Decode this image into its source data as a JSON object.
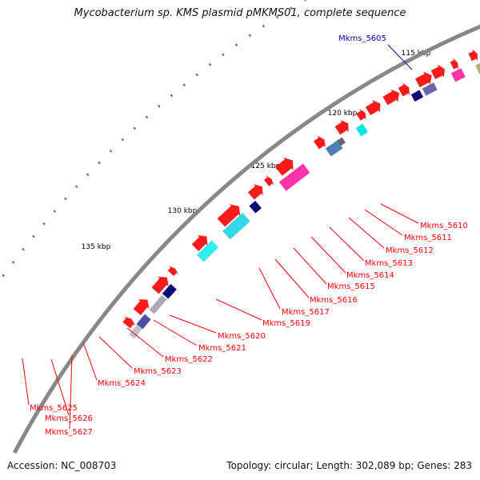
{
  "title": "Mycobacterium sp. KMS plasmid pMKMS01, complete sequence",
  "footer": {
    "accession": "Accession: NC_008703",
    "summary": "Topology: circular; Length: 302,089 bp; Genes: 283"
  },
  "colors": {
    "backbone": "#888888",
    "cds_forward": "#ff0000",
    "tick": "#2a8a2a",
    "tick_label": "#000000",
    "label_red": "#ff0000",
    "label_blue": "#0000cc"
  },
  "map": {
    "scale_labels": [
      "115 kbp",
      "120 kbp",
      "125 kbp",
      "130 kbp",
      "135 kbp"
    ],
    "gene_labels": [
      {
        "text": "Mkms_5605",
        "color": "blue"
      },
      {
        "text": "Mkms_5610",
        "color": "red"
      },
      {
        "text": "Mkms_5611",
        "color": "red"
      },
      {
        "text": "Mkms_5612",
        "color": "red"
      },
      {
        "text": "Mkms_5613",
        "color": "red"
      },
      {
        "text": "Mkms_5614",
        "color": "red"
      },
      {
        "text": "Mkms_5615",
        "color": "red"
      },
      {
        "text": "Mkms_5616",
        "color": "red"
      },
      {
        "text": "Mkms_5617",
        "color": "red"
      },
      {
        "text": "Mkms_5619",
        "color": "red"
      },
      {
        "text": "Mkms_5620",
        "color": "red"
      },
      {
        "text": "Mkms_5621",
        "color": "red"
      },
      {
        "text": "Mkms_5622",
        "color": "red"
      },
      {
        "text": "Mkms_5623",
        "color": "red"
      },
      {
        "text": "Mkms_5624",
        "color": "red"
      },
      {
        "text": "Mkms_5625",
        "color": "red"
      },
      {
        "text": "Mkms_5626",
        "color": "red"
      },
      {
        "text": "Mkms_5627",
        "color": "red"
      }
    ]
  }
}
